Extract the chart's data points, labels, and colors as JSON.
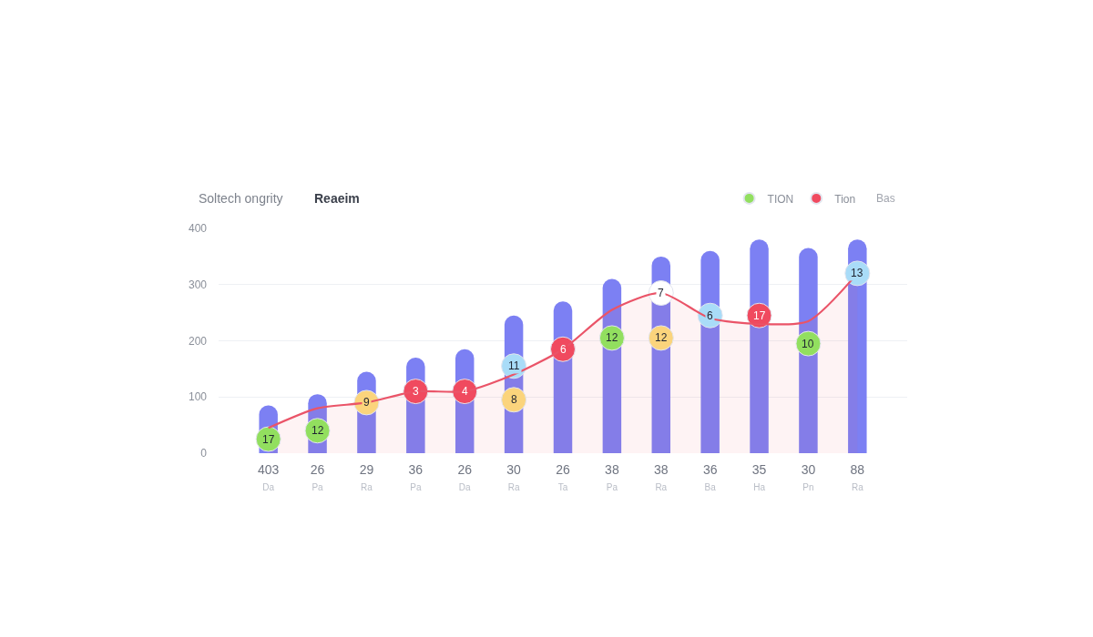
{
  "chart_data": {
    "type": "bar",
    "title": "Soltech ongrity",
    "subtitle": "Reaeim",
    "categories": [
      "403\nDa",
      "26\nPa",
      "29\nRa",
      "36\nPa",
      "26\nDa",
      "30\nRa",
      "26\nTa",
      "38\nPa",
      "38\nRa",
      "36\nBa",
      "35\nHa",
      "30\nPn",
      "88\nRa"
    ],
    "ylim": [
      0,
      400
    ],
    "yticks": [
      0,
      100,
      200,
      300,
      400
    ],
    "grid": "y",
    "legend": "top right",
    "annotations": [
      "Bas",
      {
        "text": "17",
        "x": "403\nDa",
        "y": 25
      },
      {
        "text": "12",
        "x": "26\nPa",
        "y": 40
      },
      {
        "text": "9",
        "x": "29\nRa",
        "y": 90
      },
      {
        "text": "3",
        "x": "36\nPa",
        "y": 110
      },
      {
        "text": "4",
        "x": "26\nDa",
        "y": 110
      },
      {
        "text": "11",
        "x": "30\nRa",
        "y": 155
      },
      {
        "text": "8",
        "x": "30\nRa",
        "y": 95
      },
      {
        "text": "6",
        "x": "26\nTa",
        "y": 185
      },
      {
        "text": "12",
        "x": "38\nPa",
        "y": 205
      },
      {
        "text": "7",
        "x": "38\nRa",
        "y": 285
      },
      {
        "text": "12",
        "x": "38\nRa",
        "y": 205
      },
      {
        "text": "6",
        "x": "36\nBa",
        "y": 245
      },
      {
        "text": "17",
        "x": "35\nHa",
        "y": 245
      },
      {
        "text": "10",
        "x": "30\nPn",
        "y": 195
      },
      {
        "text": "13",
        "x": "88\nRa",
        "y": 320
      }
    ],
    "series": [
      {
        "color": "#7c80f3",
        "values": [
          85,
          105,
          145,
          170,
          185,
          245,
          270,
          310,
          350,
          360,
          380,
          365,
          380
        ]
      },
      {
        "type": "scatter",
        "marker": "circle",
        "name": "TION",
        "color": "#92df5f",
        "values": [
          25,
          40,
          null,
          null,
          null,
          null,
          null,
          205,
          null,
          null,
          null,
          195,
          null
        ]
      },
      {
        "type": "scatter",
        "marker": "circle",
        "name": "Tion",
        "color": "#f04a5f",
        "values": [
          null,
          null,
          null,
          110,
          110,
          null,
          185,
          null,
          null,
          null,
          245,
          null,
          null
        ]
      },
      {
        "type": "scatter",
        "marker": "circle",
        "color": "#fbd47c",
        "values": [
          null,
          null,
          90,
          null,
          null,
          95,
          null,
          null,
          205,
          null,
          null,
          null,
          null
        ]
      },
      {
        "type": "scatter",
        "marker": "circle",
        "color": "#a9dcf8",
        "values": [
          null,
          null,
          null,
          null,
          null,
          155,
          null,
          null,
          null,
          245,
          null,
          null,
          320
        ]
      },
      {
        "type": "scatter",
        "marker": "circle",
        "color": "#ffffff",
        "values": [
          null,
          null,
          null,
          null,
          null,
          null,
          null,
          null,
          285,
          null,
          null,
          null,
          null
        ]
      },
      {
        "type": "area",
        "color": "#ea5468",
        "values": [
          45,
          80,
          90,
          110,
          110,
          140,
          185,
          255,
          285,
          240,
          230,
          235,
          320
        ]
      }
    ]
  }
}
